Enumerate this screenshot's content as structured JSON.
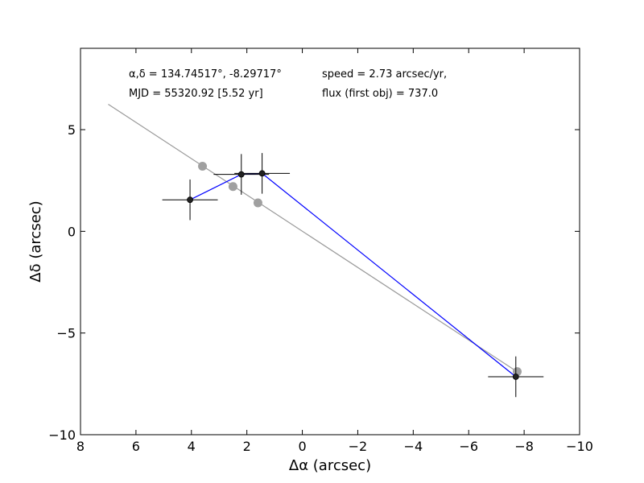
{
  "chart_data": {
    "type": "scatter",
    "title": "",
    "xlabel": "Δα (arcsec)",
    "ylabel": "Δδ (arcsec)",
    "xlim": [
      8,
      -10
    ],
    "ylim": [
      -10,
      9
    ],
    "xticks": [
      8,
      6,
      4,
      2,
      0,
      -2,
      -4,
      -6,
      -8,
      -10
    ],
    "xtick_labels": [
      "8",
      "6",
      "4",
      "2",
      "0",
      "−2",
      "−4",
      "−6",
      "−8",
      "−10"
    ],
    "yticks": [
      5,
      0,
      -5,
      -10
    ],
    "ytick_labels": [
      "5",
      "0",
      "−5",
      "−10"
    ],
    "grid": false,
    "annotations": [
      "α,δ = 134.74517°, -8.29717°",
      "speed = 2.73 arcsec/yr,",
      "MJD = 55320.92 [5.52 yr]",
      "flux (first obj) = 737.0"
    ],
    "fit_line": {
      "name": "",
      "color": "#999999",
      "x": [
        7.0,
        -7.8
      ],
      "y": [
        6.25,
        -6.95
      ]
    },
    "fit_points": {
      "name": "",
      "color": "#a0a0a0",
      "x": [
        3.6,
        2.5,
        1.6,
        -7.75
      ],
      "y": [
        3.2,
        2.2,
        1.4,
        -6.9
      ]
    },
    "track": {
      "name": "",
      "color": "#0000ff",
      "x": [
        4.05,
        2.2,
        1.45,
        -7.7
      ],
      "y": [
        1.55,
        2.8,
        2.85,
        -7.15
      ]
    },
    "observations": {
      "name": "",
      "color": "#000000",
      "x": [
        4.05,
        2.2,
        1.45,
        -7.7
      ],
      "y": [
        1.55,
        2.8,
        2.85,
        -7.15
      ],
      "xerr": [
        1.0,
        1.0,
        1.0,
        1.0
      ],
      "yerr": [
        1.0,
        1.0,
        1.0,
        1.0
      ]
    }
  }
}
